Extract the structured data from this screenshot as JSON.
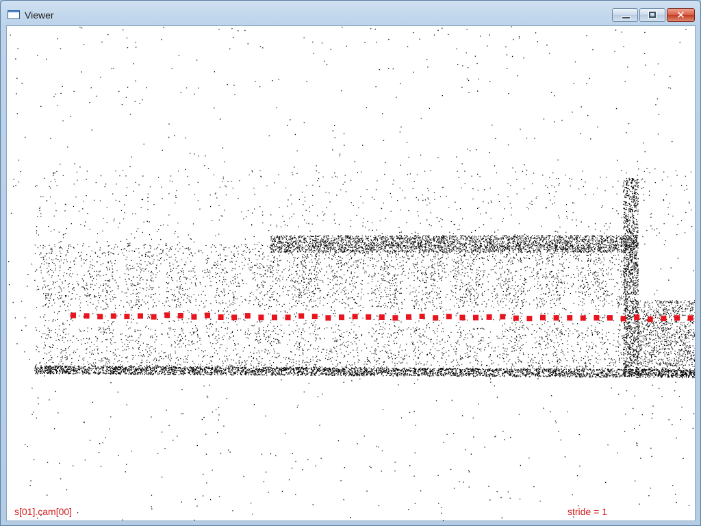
{
  "window": {
    "title": "Viewer",
    "controls": [
      "minimize",
      "maximize",
      "close"
    ]
  },
  "viewer": {
    "label_left": "s[01].cam[00]",
    "label_right": "stride = 1",
    "colors": {
      "background": "#ffffff",
      "points": "#000000",
      "camera_markers": "#e8141e",
      "overlay_text": "#d21a1a"
    }
  }
}
